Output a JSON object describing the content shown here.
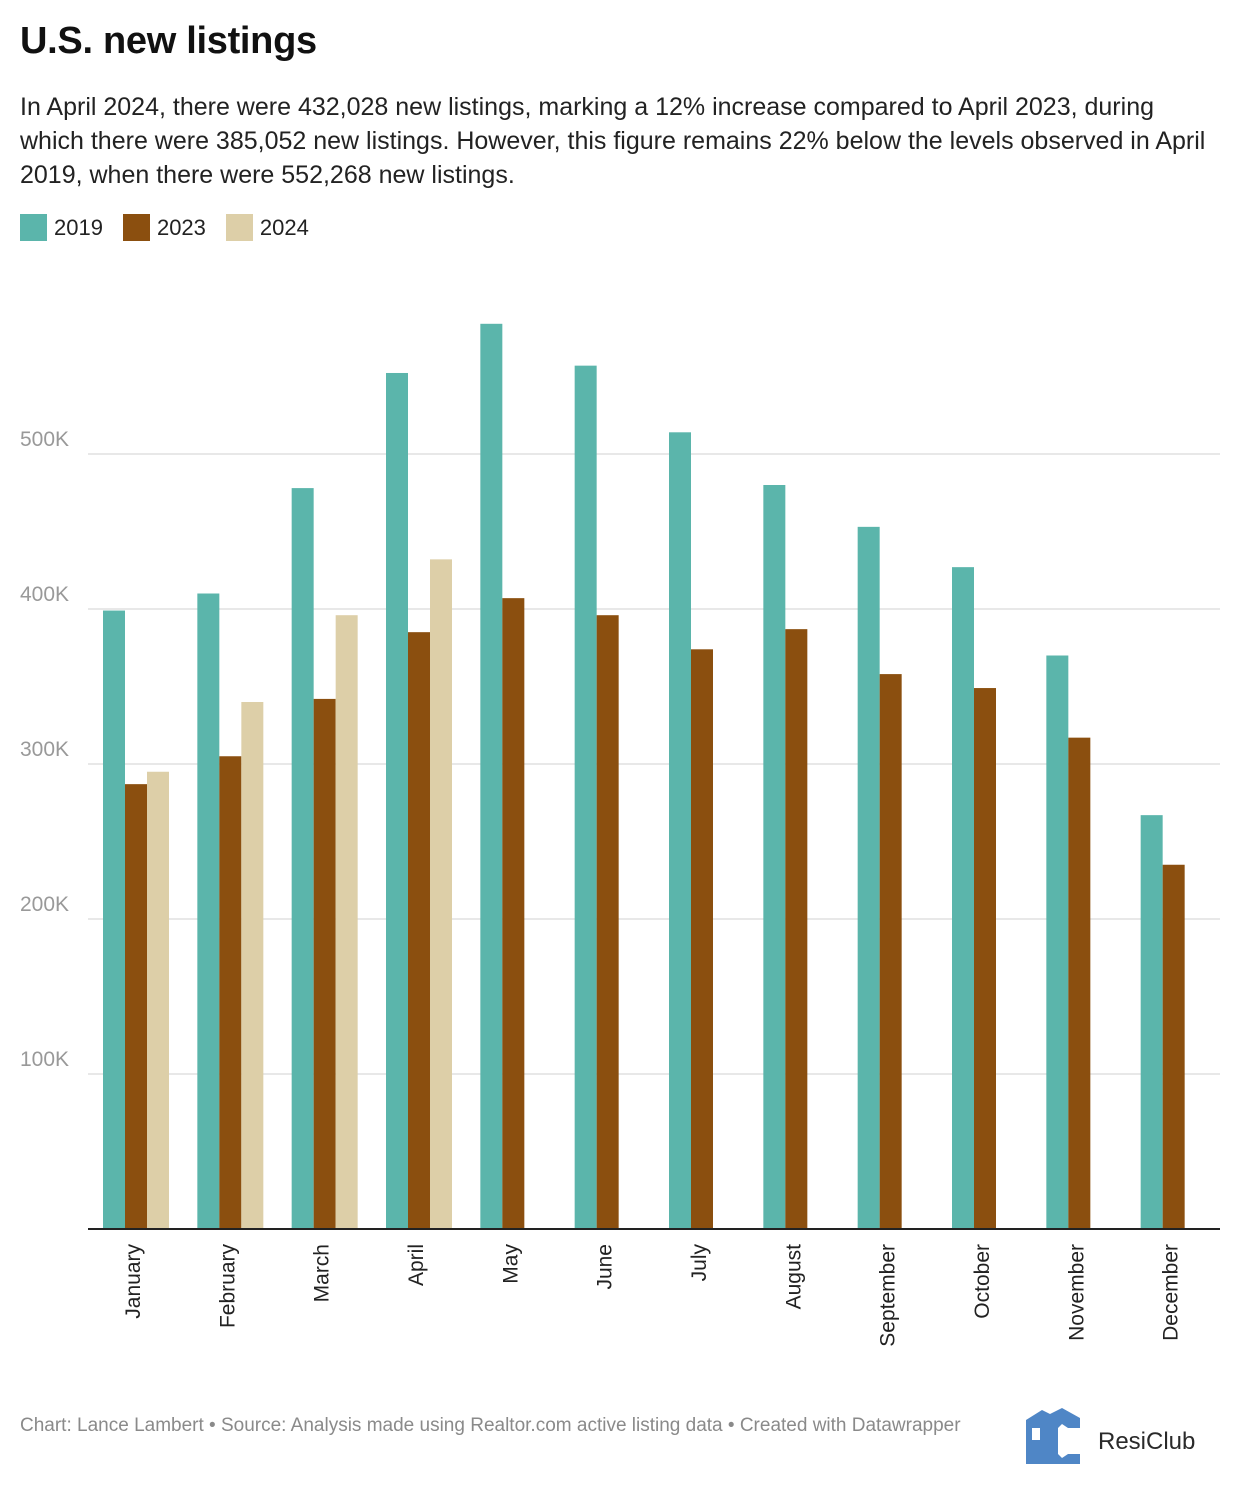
{
  "title": "U.S. new listings",
  "subtitle": "In April 2024, there were 432,028 new listings, marking a 12% increase compared to April 2023, during which there were 385,052 new listings. However, this figure remains 22% below the levels observed in April 2019, when there were 552,268 new listings.",
  "colors": {
    "series_2019": "#5bb5ab",
    "series_2023": "#8b4f0f",
    "series_2024": "#ddcfa8",
    "grid": "#e0e0e0",
    "axis": "#222222",
    "tick_label": "#999999",
    "logo_blue": "#4f86c6"
  },
  "legend": [
    {
      "label": "2019",
      "color": "#5bb5ab"
    },
    {
      "label": "2023",
      "color": "#8b4f0f"
    },
    {
      "label": "2024",
      "color": "#ddcfa8"
    }
  ],
  "chart_data": {
    "type": "bar",
    "title": "U.S. new listings",
    "xlabel": "",
    "ylabel": "",
    "ylim": [
      0,
      600000
    ],
    "yticks": [
      100000,
      200000,
      300000,
      400000,
      500000
    ],
    "ytick_labels": [
      "100K",
      "200K",
      "300K",
      "400K",
      "500K"
    ],
    "grid": true,
    "legend_position": "top-left",
    "categories": [
      "January",
      "February",
      "March",
      "April",
      "May",
      "June",
      "July",
      "August",
      "September",
      "October",
      "November",
      "December"
    ],
    "series": [
      {
        "name": "2019",
        "values": [
          399000,
          410000,
          478000,
          552268,
          584000,
          557000,
          514000,
          480000,
          453000,
          427000,
          370000,
          267000
        ]
      },
      {
        "name": "2023",
        "values": [
          287000,
          305000,
          342000,
          385052,
          407000,
          396000,
          374000,
          387000,
          358000,
          349000,
          317000,
          235000
        ]
      },
      {
        "name": "2024",
        "values": [
          295000,
          340000,
          396000,
          432028,
          null,
          null,
          null,
          null,
          null,
          null,
          null,
          null
        ]
      }
    ]
  },
  "footer": {
    "text": "Chart: Lance Lambert • Source: Analysis made using Realtor.com active listing data • Created with Datawrapper"
  },
  "logo": {
    "text": "ResiClub"
  }
}
